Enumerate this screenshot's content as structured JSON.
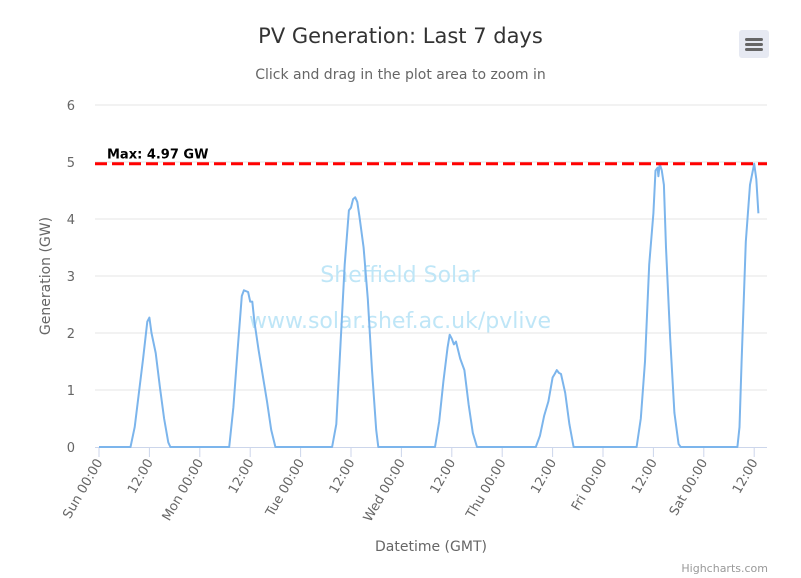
{
  "chart_data": {
    "type": "line",
    "title": "PV Generation: Last 7 days",
    "subtitle": "Click and drag in the plot area to zoom in",
    "xlabel": "Datetime (GMT)",
    "ylabel": "Generation (GW)",
    "ylim": [
      0,
      6
    ],
    "yticks": [
      "0",
      "1",
      "2",
      "3",
      "4",
      "5",
      "6"
    ],
    "xlim_hours": [
      0,
      158
    ],
    "xticks": [
      {
        "hour": 0,
        "label": "Sun 00:00"
      },
      {
        "hour": 12,
        "label": "12:00"
      },
      {
        "hour": 24,
        "label": "Mon 00:00"
      },
      {
        "hour": 36,
        "label": "12:00"
      },
      {
        "hour": 48,
        "label": "Tue 00:00"
      },
      {
        "hour": 60,
        "label": "12:00"
      },
      {
        "hour": 72,
        "label": "Wed 00:00"
      },
      {
        "hour": 84,
        "label": "12:00"
      },
      {
        "hour": 96,
        "label": "Thu 00:00"
      },
      {
        "hour": 108,
        "label": "12:00"
      },
      {
        "hour": 120,
        "label": "Fri 00:00"
      },
      {
        "hour": 132,
        "label": "12:00"
      },
      {
        "hour": 144,
        "label": "Sat 00:00"
      },
      {
        "hour": 156,
        "label": "12:00"
      }
    ],
    "grid": true,
    "legend": "none",
    "plot_line": {
      "value": 4.97,
      "label": "Max: 4.97 GW",
      "color": "#ff0000",
      "style": "dashed"
    },
    "watermark": [
      "Sheffield Solar",
      "www.solar.shef.ac.uk/pvlive"
    ],
    "series": [
      {
        "name": "PV Generation",
        "color": "#7cb5ec",
        "x_hours": [
          0,
          7.5,
          8.5,
          9.5,
          10.5,
          11.5,
          12,
          12.5,
          13.5,
          14.5,
          15.5,
          16.5,
          17,
          31,
          32,
          33,
          34,
          34.5,
          35.5,
          36,
          36.5,
          37,
          38,
          39,
          40,
          41,
          42,
          55.5,
          56.5,
          57.5,
          58.5,
          59.5,
          60,
          60.5,
          61,
          61.5,
          62,
          63,
          64,
          65,
          66,
          66.5,
          80,
          81,
          82,
          83,
          83.5,
          84,
          84.5,
          85,
          86,
          87,
          88,
          89,
          90,
          104,
          105,
          106,
          107,
          108,
          108.5,
          109,
          109.5,
          110,
          111,
          112,
          113,
          128,
          129,
          130,
          131,
          132,
          132.5,
          133,
          133.2,
          133.5,
          134,
          134.5,
          135,
          136,
          137,
          138,
          138.5,
          152,
          152.5,
          153,
          154,
          155,
          156,
          156.5,
          157
        ],
        "values": [
          0,
          0,
          0.35,
          0.95,
          1.55,
          2.2,
          2.27,
          2.0,
          1.65,
          1.05,
          0.5,
          0.08,
          0,
          0,
          0.7,
          1.7,
          2.65,
          2.75,
          2.72,
          2.55,
          2.55,
          2.2,
          1.7,
          1.25,
          0.8,
          0.3,
          0,
          0,
          0.4,
          1.8,
          3.2,
          4.15,
          4.2,
          4.35,
          4.38,
          4.3,
          4.05,
          3.5,
          2.6,
          1.35,
          0.3,
          0,
          0,
          0.45,
          1.15,
          1.75,
          1.97,
          1.9,
          1.8,
          1.85,
          1.55,
          1.35,
          0.75,
          0.25,
          0,
          0,
          0.2,
          0.55,
          0.8,
          1.22,
          1.28,
          1.35,
          1.3,
          1.28,
          0.95,
          0.4,
          0,
          0,
          0.5,
          1.5,
          3.2,
          4.1,
          4.85,
          4.9,
          4.75,
          4.97,
          4.85,
          4.6,
          3.5,
          1.9,
          0.6,
          0.05,
          0,
          0,
          0.35,
          1.5,
          3.6,
          4.6,
          4.97,
          4.7,
          4.1
        ]
      }
    ]
  },
  "ui": {
    "menu_icon": "hamburger-icon",
    "credits": "Highcharts.com"
  }
}
